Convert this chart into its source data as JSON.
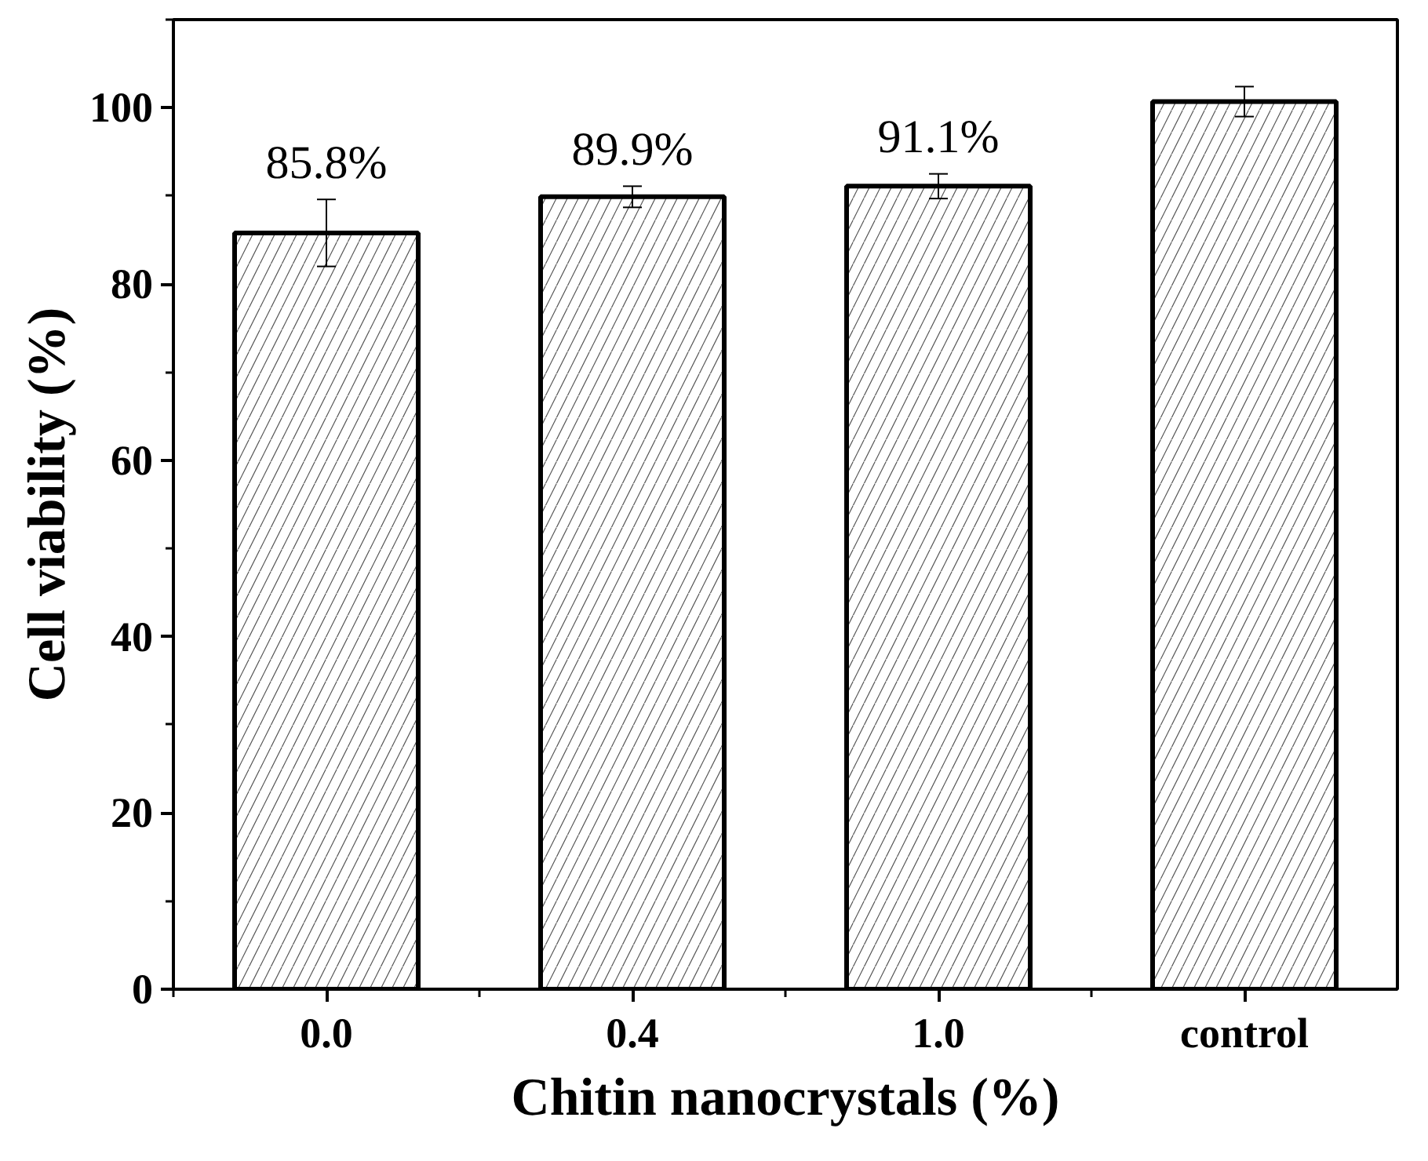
{
  "chart_data": {
    "type": "bar",
    "xlabel": "Chitin nanocrystals (%)",
    "ylabel": "Cell viability (%)",
    "categories": [
      "0.0",
      "0.4",
      "1.0",
      "control"
    ],
    "values": [
      85.8,
      89.9,
      91.1,
      100.7
    ],
    "errors": [
      3.8,
      1.2,
      1.4,
      1.7
    ],
    "value_labels": [
      "85.8%",
      "89.9%",
      "91.1%",
      null
    ],
    "color": "#ffffff",
    "ylim": [
      0,
      110
    ],
    "yticks": [
      0,
      20,
      40,
      60,
      80,
      100
    ],
    "grid": false
  }
}
